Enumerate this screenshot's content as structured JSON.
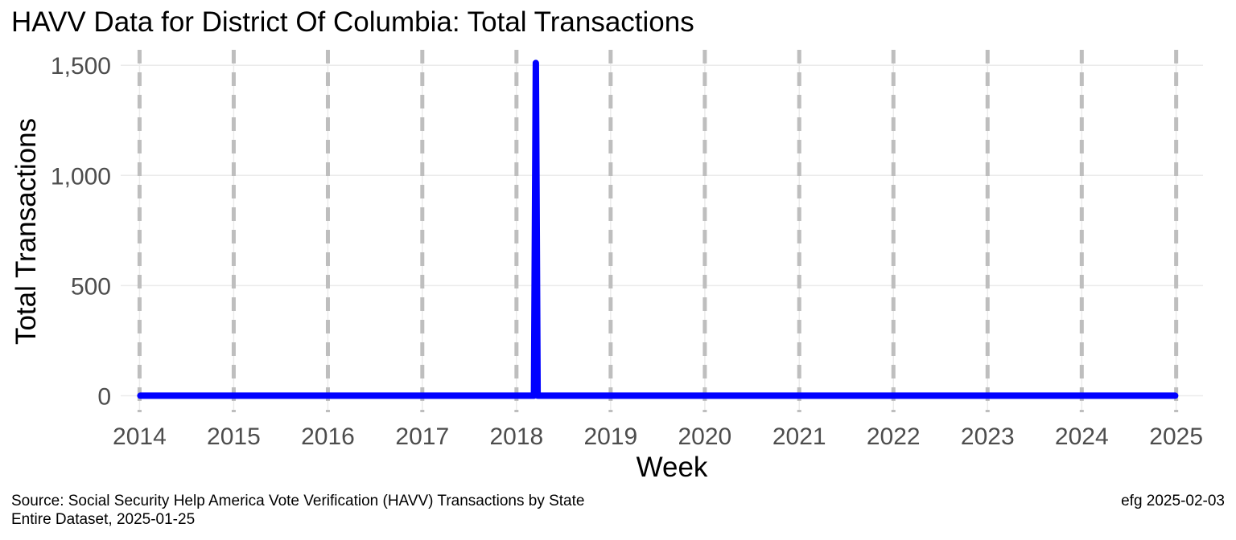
{
  "chart_data": {
    "type": "line",
    "title": "HAVV Data for District Of Columbia:  Total Transactions",
    "xlabel": "Week",
    "ylabel": "Total Transactions",
    "x_ticks": [
      "2014",
      "2015",
      "2016",
      "2017",
      "2018",
      "2019",
      "2020",
      "2021",
      "2022",
      "2023",
      "2024",
      "2025"
    ],
    "y_ticks": [
      0,
      500,
      1000,
      1500
    ],
    "y_tick_labels": [
      "0",
      "500",
      "1,000",
      "1,500"
    ],
    "xlim": [
      "2013-10-20",
      "2025-04-15"
    ],
    "ylim": [
      -75,
      1570
    ],
    "grid": true,
    "vertical_reference_lines": [
      "2014",
      "2015",
      "2016",
      "2017",
      "2018",
      "2019",
      "2020",
      "2021",
      "2022",
      "2023",
      "2024",
      "2025"
    ],
    "series": [
      {
        "color": "#0000ff",
        "points": [
          {
            "x": "2014-01-04",
            "y": 0
          },
          {
            "x": "2018-03-10",
            "y": 0
          },
          {
            "x": "2018-03-17",
            "y": 1510
          },
          {
            "x": "2018-03-24",
            "y": 0
          },
          {
            "x": "2024-12-28",
            "y": 0
          }
        ]
      }
    ]
  },
  "footer": {
    "source_line1": "Source:  Social Security Help America Vote Verification (HAVV) Transactions by State",
    "source_line2": "Entire Dataset, 2025-01-25",
    "credit": "efg 2025-02-03"
  },
  "colors": {
    "line": "#0000ff",
    "reference_lines": "#bebebe",
    "gridlines": "#ebebeb",
    "tick_text": "#4d4d4d"
  }
}
